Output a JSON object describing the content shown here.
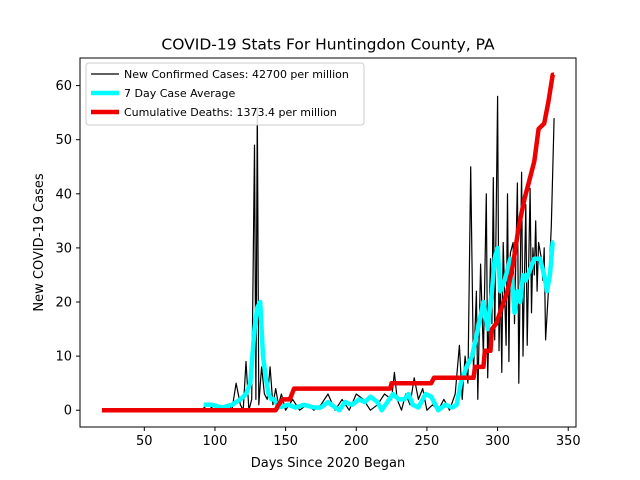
{
  "chart_data": {
    "type": "line",
    "title": "COVID-19 Stats For Huntingdon County, PA",
    "xlabel": "Days Since 2020 Began",
    "ylabel": "New COVID-19 Cases",
    "xlim": [
      4.5,
      355.5
    ],
    "ylim": [
      -3.1,
      65.1
    ],
    "xticks": [
      50,
      100,
      150,
      200,
      250,
      300,
      350
    ],
    "yticks": [
      0,
      10,
      20,
      30,
      40,
      50,
      60
    ],
    "grid": false,
    "legend_position": "top-left",
    "series": [
      {
        "name": "New Confirmed Cases: 42700 per million",
        "color": "#000000",
        "points": [
          [
            90,
            0
          ],
          [
            95,
            1
          ],
          [
            100,
            0
          ],
          [
            105,
            0
          ],
          [
            110,
            1
          ],
          [
            112,
            0
          ],
          [
            115,
            5
          ],
          [
            118,
            1
          ],
          [
            120,
            0
          ],
          [
            122,
            9
          ],
          [
            124,
            0
          ],
          [
            126,
            2
          ],
          [
            128,
            49
          ],
          [
            129,
            2
          ],
          [
            130,
            56
          ],
          [
            131,
            1
          ],
          [
            133,
            8
          ],
          [
            135,
            3
          ],
          [
            137,
            2
          ],
          [
            139,
            8
          ],
          [
            141,
            1
          ],
          [
            143,
            4
          ],
          [
            145,
            1
          ],
          [
            147,
            3
          ],
          [
            150,
            0
          ],
          [
            155,
            2
          ],
          [
            160,
            0
          ],
          [
            165,
            1
          ],
          [
            170,
            0
          ],
          [
            175,
            1
          ],
          [
            180,
            3
          ],
          [
            185,
            0
          ],
          [
            190,
            2
          ],
          [
            195,
            0
          ],
          [
            200,
            3
          ],
          [
            205,
            2
          ],
          [
            210,
            0
          ],
          [
            215,
            1
          ],
          [
            220,
            3
          ],
          [
            225,
            2
          ],
          [
            227,
            7
          ],
          [
            229,
            2
          ],
          [
            232,
            0
          ],
          [
            235,
            3
          ],
          [
            238,
            1
          ],
          [
            241,
            6
          ],
          [
            244,
            2
          ],
          [
            247,
            4
          ],
          [
            250,
            0
          ],
          [
            254,
            1
          ],
          [
            258,
            0
          ],
          [
            262,
            2
          ],
          [
            266,
            0
          ],
          [
            270,
            3
          ],
          [
            273,
            12
          ],
          [
            275,
            2
          ],
          [
            277,
            10
          ],
          [
            279,
            5
          ],
          [
            281,
            45
          ],
          [
            283,
            7
          ],
          [
            285,
            22
          ],
          [
            286,
            2
          ],
          [
            288,
            27
          ],
          [
            290,
            10
          ],
          [
            292,
            40
          ],
          [
            293,
            6
          ],
          [
            295,
            28
          ],
          [
            296,
            16
          ],
          [
            297,
            43
          ],
          [
            298,
            13
          ],
          [
            300,
            58
          ],
          [
            301,
            11
          ],
          [
            302,
            24
          ],
          [
            303,
            7
          ],
          [
            304,
            31
          ],
          [
            306,
            12
          ],
          [
            307,
            40
          ],
          [
            308,
            9
          ],
          [
            309,
            29
          ],
          [
            311,
            31
          ],
          [
            312,
            16
          ],
          [
            314,
            42
          ],
          [
            315,
            5
          ],
          [
            317,
            44
          ],
          [
            318,
            10
          ],
          [
            320,
            38
          ],
          [
            321,
            12
          ],
          [
            323,
            41
          ],
          [
            324,
            18
          ],
          [
            325,
            30
          ],
          [
            326,
            25
          ],
          [
            327,
            35
          ],
          [
            328,
            22
          ],
          [
            329,
            31
          ],
          [
            331,
            28
          ],
          [
            332,
            24
          ],
          [
            333,
            30
          ],
          [
            334,
            13
          ],
          [
            336,
            22
          ],
          [
            338,
            34
          ],
          [
            340,
            54
          ]
        ]
      },
      {
        "name": "7 Day Case Average",
        "color": "#00ffff",
        "points": [
          [
            92,
            1
          ],
          [
            98,
            1
          ],
          [
            105,
            0.5
          ],
          [
            112,
            1
          ],
          [
            118,
            2
          ],
          [
            122,
            3
          ],
          [
            125,
            5
          ],
          [
            128,
            15
          ],
          [
            130,
            19
          ],
          [
            132,
            20
          ],
          [
            134,
            10
          ],
          [
            136,
            6
          ],
          [
            138,
            3
          ],
          [
            140,
            2
          ],
          [
            142,
            2
          ],
          [
            145,
            0.5
          ],
          [
            152,
            1
          ],
          [
            157,
            0.5
          ],
          [
            163,
            1
          ],
          [
            170,
            0.5
          ],
          [
            175,
            0.5
          ],
          [
            180,
            1.5
          ],
          [
            185,
            0.5
          ],
          [
            188,
            0
          ],
          [
            192,
            1.5
          ],
          [
            197,
            1
          ],
          [
            202,
            2
          ],
          [
            206,
            1.5
          ],
          [
            210,
            2.5
          ],
          [
            215,
            1.5
          ],
          [
            218,
            0
          ],
          [
            222,
            1.5
          ],
          [
            226,
            3
          ],
          [
            230,
            2
          ],
          [
            234,
            2
          ],
          [
            237,
            3
          ],
          [
            240,
            1
          ],
          [
            244,
            0.5
          ],
          [
            249,
            3
          ],
          [
            253,
            2.5
          ],
          [
            258,
            0
          ],
          [
            263,
            1
          ],
          [
            268,
            0.5
          ],
          [
            271,
            1
          ],
          [
            274,
            5
          ],
          [
            278,
            8
          ],
          [
            282,
            10
          ],
          [
            286,
            15
          ],
          [
            290,
            20
          ],
          [
            293,
            15
          ],
          [
            296,
            22
          ],
          [
            298,
            28
          ],
          [
            300,
            30
          ],
          [
            302,
            22
          ],
          [
            305,
            24
          ],
          [
            307,
            26
          ],
          [
            309,
            28
          ],
          [
            312,
            18
          ],
          [
            314,
            22
          ],
          [
            316,
            20
          ],
          [
            318,
            25
          ],
          [
            320,
            24
          ],
          [
            323,
            26
          ],
          [
            326,
            28
          ],
          [
            330,
            28
          ],
          [
            333,
            25
          ],
          [
            335,
            22
          ],
          [
            337,
            25
          ],
          [
            339,
            31
          ],
          [
            340,
            31
          ]
        ]
      },
      {
        "name": "Cumulative Deaths: 1373.4 per million",
        "color": "#ee0000",
        "points": [
          [
            20,
            0
          ],
          [
            143,
            0
          ],
          [
            145,
            1
          ],
          [
            148,
            2
          ],
          [
            153,
            2
          ],
          [
            156,
            4
          ],
          [
            224,
            4
          ],
          [
            225,
            5
          ],
          [
            253,
            5
          ],
          [
            255,
            6
          ],
          [
            283,
            6
          ],
          [
            284,
            8
          ],
          [
            290,
            8
          ],
          [
            291,
            11
          ],
          [
            295,
            11
          ],
          [
            296,
            15
          ],
          [
            299,
            16
          ],
          [
            303,
            19
          ],
          [
            307,
            22
          ],
          [
            311,
            27
          ],
          [
            315,
            34
          ],
          [
            319,
            39
          ],
          [
            322,
            42
          ],
          [
            326,
            46
          ],
          [
            329,
            52
          ],
          [
            333,
            53
          ],
          [
            336,
            57
          ],
          [
            339,
            62
          ],
          [
            340,
            62
          ]
        ]
      }
    ]
  }
}
